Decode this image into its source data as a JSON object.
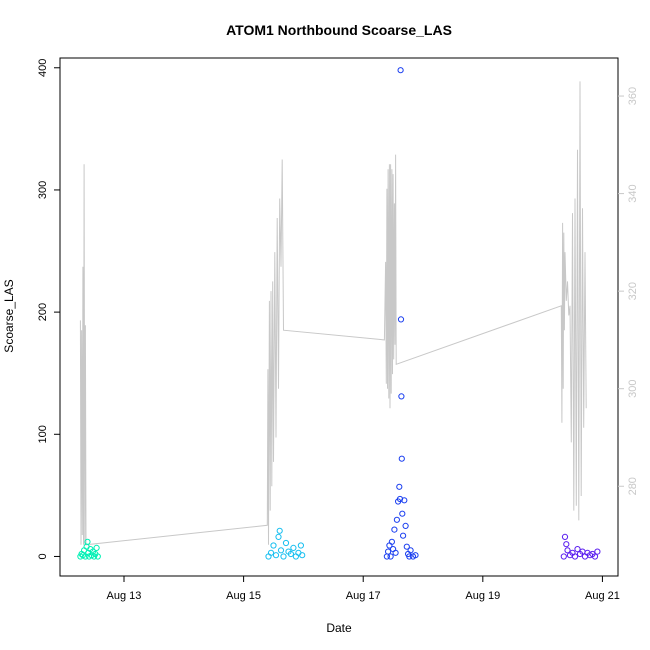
{
  "chart_data": {
    "type": "scatter",
    "title": "ATOM1 Northbound Scoarse_LAS",
    "xlabel": "Date",
    "ylabel": "Scoarse_LAS",
    "xlim": [
      "2023-08-11T22:19:00",
      "2023-08-21T06:15:00"
    ],
    "ylim": [
      -16,
      408
    ],
    "x_ticks": [
      "Aug 13",
      "Aug 15",
      "Aug 17",
      "Aug 19",
      "Aug 21"
    ],
    "x_tick_dates": [
      "2023-08-13",
      "2023-08-15",
      "2023-08-17",
      "2023-08-19",
      "2023-08-21"
    ],
    "y_ticks": [
      0,
      100,
      200,
      300,
      400
    ],
    "y2_ticks": [
      280,
      300,
      320,
      340,
      360
    ],
    "y2_lim": [
      261.6,
      367.8
    ],
    "grid": false,
    "legend": "none",
    "colors": {
      "line": "#c8c8c8",
      "axis": "#000000",
      "right_axis": "#c8c8c8",
      "cluster1": "#00f0b4",
      "cluster2": "#18bff0",
      "cluster3": "#1b3ff0",
      "cluster4": "#5b1ef0"
    },
    "series": [
      {
        "axis": "left",
        "style": "open-circle",
        "color": "#00f0b4",
        "points": [
          [
            "2023-08-12T06:30:00",
            0
          ],
          [
            "2023-08-12T07:00:00",
            2
          ],
          [
            "2023-08-12T07:30:00",
            1
          ],
          [
            "2023-08-12T08:00:00",
            5
          ],
          [
            "2023-08-12T08:30:00",
            0
          ],
          [
            "2023-08-12T09:00:00",
            8
          ],
          [
            "2023-08-12T09:20:00",
            12
          ],
          [
            "2023-08-12T09:40:00",
            3
          ],
          [
            "2023-08-12T10:00:00",
            0
          ],
          [
            "2023-08-12T10:30:00",
            6
          ],
          [
            "2023-08-12T11:00:00",
            1
          ],
          [
            "2023-08-12T11:30:00",
            4
          ],
          [
            "2023-08-12T12:00:00",
            0
          ],
          [
            "2023-08-12T12:30:00",
            2
          ],
          [
            "2023-08-12T13:00:00",
            7
          ],
          [
            "2023-08-12T13:30:00",
            0
          ]
        ]
      },
      {
        "axis": "left",
        "style": "open-circle",
        "color": "#18bff0",
        "points": [
          [
            "2023-08-15T10:00:00",
            0
          ],
          [
            "2023-08-15T11:00:00",
            3
          ],
          [
            "2023-08-15T12:00:00",
            9
          ],
          [
            "2023-08-15T13:00:00",
            1
          ],
          [
            "2023-08-15T14:00:00",
            16
          ],
          [
            "2023-08-15T14:30:00",
            21
          ],
          [
            "2023-08-15T15:00:00",
            5
          ],
          [
            "2023-08-15T16:00:00",
            0
          ],
          [
            "2023-08-15T17:00:00",
            11
          ],
          [
            "2023-08-15T18:00:00",
            4
          ],
          [
            "2023-08-15T19:00:00",
            2
          ],
          [
            "2023-08-15T20:00:00",
            7
          ],
          [
            "2023-08-15T21:00:00",
            0
          ],
          [
            "2023-08-15T22:00:00",
            3
          ],
          [
            "2023-08-15T23:00:00",
            9
          ],
          [
            "2023-08-15T23:30:00",
            1
          ]
        ]
      },
      {
        "axis": "left",
        "style": "open-circle",
        "color": "#1b3ff0",
        "points": [
          [
            "2023-08-17T09:30:00",
            0
          ],
          [
            "2023-08-17T10:00:00",
            4
          ],
          [
            "2023-08-17T10:30:00",
            9
          ],
          [
            "2023-08-17T11:00:00",
            0
          ],
          [
            "2023-08-17T11:30:00",
            12
          ],
          [
            "2023-08-17T12:00:00",
            6
          ],
          [
            "2023-08-17T12:30:00",
            22
          ],
          [
            "2023-08-17T13:00:00",
            3
          ],
          [
            "2023-08-17T13:30:00",
            30
          ],
          [
            "2023-08-17T14:00:00",
            45
          ],
          [
            "2023-08-17T14:30:00",
            57
          ],
          [
            "2023-08-17T14:45:00",
            47
          ],
          [
            "2023-08-17T15:00:00",
            398
          ],
          [
            "2023-08-17T15:10:00",
            194
          ],
          [
            "2023-08-17T15:20:00",
            131
          ],
          [
            "2023-08-17T15:30:00",
            80
          ],
          [
            "2023-08-17T15:40:00",
            35
          ],
          [
            "2023-08-17T16:00:00",
            17
          ],
          [
            "2023-08-17T16:30:00",
            46
          ],
          [
            "2023-08-17T17:00:00",
            25
          ],
          [
            "2023-08-17T17:30:00",
            8
          ],
          [
            "2023-08-17T18:00:00",
            2
          ],
          [
            "2023-08-17T18:30:00",
            0
          ],
          [
            "2023-08-17T19:00:00",
            5
          ],
          [
            "2023-08-17T20:00:00",
            0
          ],
          [
            "2023-08-17T21:00:00",
            1
          ]
        ]
      },
      {
        "axis": "left",
        "style": "open-circle",
        "color": "#5b1ef0",
        "points": [
          [
            "2023-08-20T08:30:00",
            0
          ],
          [
            "2023-08-20T09:00:00",
            16
          ],
          [
            "2023-08-20T09:30:00",
            10
          ],
          [
            "2023-08-20T10:00:00",
            5
          ],
          [
            "2023-08-20T11:00:00",
            1
          ],
          [
            "2023-08-20T12:00:00",
            3
          ],
          [
            "2023-08-20T13:00:00",
            0
          ],
          [
            "2023-08-20T14:00:00",
            6
          ],
          [
            "2023-08-20T15:00:00",
            2
          ],
          [
            "2023-08-20T16:00:00",
            4
          ],
          [
            "2023-08-20T17:00:00",
            0
          ],
          [
            "2023-08-20T18:00:00",
            3
          ],
          [
            "2023-08-20T19:00:00",
            1
          ],
          [
            "2023-08-20T20:00:00",
            2
          ],
          [
            "2023-08-20T21:00:00",
            0
          ],
          [
            "2023-08-20T22:00:00",
            4
          ]
        ]
      },
      {
        "axis": "right",
        "style": "line",
        "color": "#c8c8c8",
        "points": [
          [
            "2023-08-12T06:30:00",
            314
          ],
          [
            "2023-08-12T06:45:00",
            268
          ],
          [
            "2023-08-12T07:00:00",
            312
          ],
          [
            "2023-08-12T07:15:00",
            270
          ],
          [
            "2023-08-12T07:30:00",
            325
          ],
          [
            "2023-08-12T07:45:00",
            268
          ],
          [
            "2023-08-12T08:00:00",
            346
          ],
          [
            "2023-08-12T08:15:00",
            268
          ],
          [
            "2023-08-12T08:30:00",
            313
          ],
          [
            "2023-08-12T08:45:00",
            268
          ],
          [
            "2023-08-15T09:30:00",
            272
          ],
          [
            "2023-08-15T09:45:00",
            304
          ],
          [
            "2023-08-15T10:00:00",
            268
          ],
          [
            "2023-08-15T10:20:00",
            318
          ],
          [
            "2023-08-15T10:40:00",
            275
          ],
          [
            "2023-08-15T11:00:00",
            320
          ],
          [
            "2023-08-15T11:20:00",
            280
          ],
          [
            "2023-08-15T11:40:00",
            322
          ],
          [
            "2023-08-15T12:00:00",
            285
          ],
          [
            "2023-08-15T12:30:00",
            328
          ],
          [
            "2023-08-15T13:00:00",
            290
          ],
          [
            "2023-08-15T13:30:00",
            335
          ],
          [
            "2023-08-15T14:00:00",
            300
          ],
          [
            "2023-08-15T14:30:00",
            339
          ],
          [
            "2023-08-15T15:00:00",
            325
          ],
          [
            "2023-08-15T15:30:00",
            347
          ],
          [
            "2023-08-15T16:00:00",
            312
          ],
          [
            "2023-08-17T08:30:00",
            310
          ],
          [
            "2023-08-17T09:00:00",
            326
          ],
          [
            "2023-08-17T09:15:00",
            301
          ],
          [
            "2023-08-17T09:30:00",
            341
          ],
          [
            "2023-08-17T09:45:00",
            300
          ],
          [
            "2023-08-17T10:00:00",
            345
          ],
          [
            "2023-08-17T10:15:00",
            298
          ],
          [
            "2023-08-17T10:30:00",
            346
          ],
          [
            "2023-08-17T10:45:00",
            296
          ],
          [
            "2023-08-17T11:00:00",
            346
          ],
          [
            "2023-08-17T11:15:00",
            299
          ],
          [
            "2023-08-17T11:30:00",
            345
          ],
          [
            "2023-08-17T11:45:00",
            303
          ],
          [
            "2023-08-17T12:00:00",
            344
          ],
          [
            "2023-08-17T12:15:00",
            306
          ],
          [
            "2023-08-17T12:30:00",
            338
          ],
          [
            "2023-08-17T12:45:00",
            309
          ],
          [
            "2023-08-17T13:00:00",
            348
          ],
          [
            "2023-08-17T13:15:00",
            305
          ],
          [
            "2023-08-20T07:30:00",
            317
          ],
          [
            "2023-08-20T07:45:00",
            293
          ],
          [
            "2023-08-20T08:00:00",
            334
          ],
          [
            "2023-08-20T08:15:00",
            300
          ],
          [
            "2023-08-20T08:30:00",
            332
          ],
          [
            "2023-08-20T08:45:00",
            312
          ],
          [
            "2023-08-20T09:00:00",
            328
          ],
          [
            "2023-08-20T09:30:00",
            318
          ],
          [
            "2023-08-20T10:00:00",
            322
          ],
          [
            "2023-08-20T10:30:00",
            315
          ],
          [
            "2023-08-20T11:00:00",
            317
          ],
          [
            "2023-08-20T11:30:00",
            289
          ],
          [
            "2023-08-20T12:00:00",
            336
          ],
          [
            "2023-08-20T12:30:00",
            275
          ],
          [
            "2023-08-20T13:00:00",
            339
          ],
          [
            "2023-08-20T13:30:00",
            276
          ],
          [
            "2023-08-20T14:00:00",
            349
          ],
          [
            "2023-08-20T14:30:00",
            273
          ],
          [
            "2023-08-20T15:00:00",
            363
          ],
          [
            "2023-08-20T15:30:00",
            278
          ],
          [
            "2023-08-20T16:00:00",
            337
          ],
          [
            "2023-08-20T16:30:00",
            292
          ],
          [
            "2023-08-20T17:00:00",
            328
          ],
          [
            "2023-08-20T17:30:00",
            296
          ]
        ]
      }
    ]
  }
}
